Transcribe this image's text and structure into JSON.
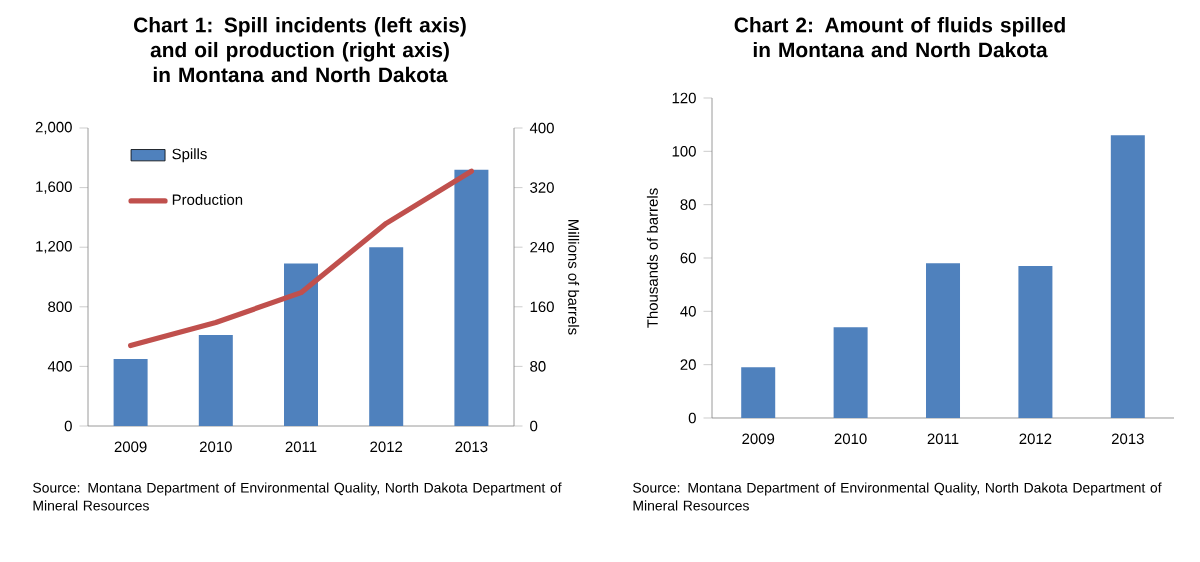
{
  "chart_data": [
    {
      "type": "bar",
      "title": "Chart 1: Spill incidents (left axis) and oil production (right axis) in Montana and North Dakota",
      "categories": [
        "2009",
        "2010",
        "2011",
        "2012",
        "2013"
      ],
      "series": [
        {
          "name": "Spills",
          "color": "#4f81bd",
          "values": [
            450,
            610,
            1090,
            1200,
            1720
          ]
        },
        {
          "name": "Production",
          "type": "line",
          "axis": "y2",
          "color": "#c0504d",
          "values": [
            108,
            139,
            179,
            272,
            342
          ]
        }
      ],
      "ylim": [
        0,
        2000
      ],
      "yticks": [
        0,
        400,
        800,
        {
          "value": 1200,
          "label": "1,200"
        },
        {
          "value": 1600,
          "label": "1,600"
        },
        {
          "value": 2000,
          "label": "2,000"
        }
      ],
      "y2lim": [
        0,
        400
      ],
      "y2ticks": [
        0,
        80,
        160,
        240,
        320,
        400
      ],
      "y2label": "Millions of barrels",
      "legend": "top left",
      "annotations": [
        "Source: Montana Department of Environmental Quality, North Dakota Department of Mineral Resources"
      ]
    },
    {
      "type": "bar",
      "title": "Chart 2: Amount of fluids spilled in Montana and North Dakota",
      "categories": [
        "2009",
        "2010",
        "2011",
        "2012",
        "2013"
      ],
      "values": [
        19,
        34,
        58,
        57,
        106
      ],
      "color": "#4f81bd",
      "ylabel": "Thousands of barrels",
      "ylim": [
        0,
        120
      ],
      "yticks": [
        0,
        20,
        40,
        60,
        80,
        100,
        120
      ],
      "annotations": [
        "Source: Montana Department of Environmental Quality, North Dakota Department of Mineral Resources"
      ]
    }
  ]
}
